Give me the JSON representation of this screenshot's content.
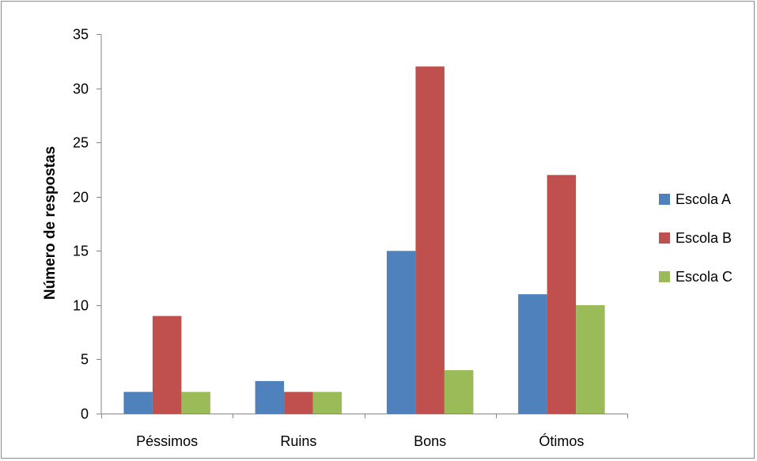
{
  "chart_data": {
    "type": "bar",
    "title": "",
    "xlabel": "",
    "ylabel": "Número de respostas",
    "categories": [
      "Péssimos",
      "Ruins",
      "Bons",
      "Ótimos"
    ],
    "series": [
      {
        "name": "Escola A",
        "color": "#4f81bd",
        "values": [
          2,
          3,
          15,
          11
        ]
      },
      {
        "name": "Escola B",
        "color": "#c0504d",
        "values": [
          9,
          2,
          32,
          22
        ]
      },
      {
        "name": "Escola C",
        "color": "#9bbb59",
        "values": [
          2,
          2,
          4,
          10
        ]
      }
    ],
    "ylim": [
      0,
      35
    ],
    "yticks": [
      0,
      5,
      10,
      15,
      20,
      25,
      30,
      35
    ],
    "grid": false,
    "legend": "right"
  }
}
